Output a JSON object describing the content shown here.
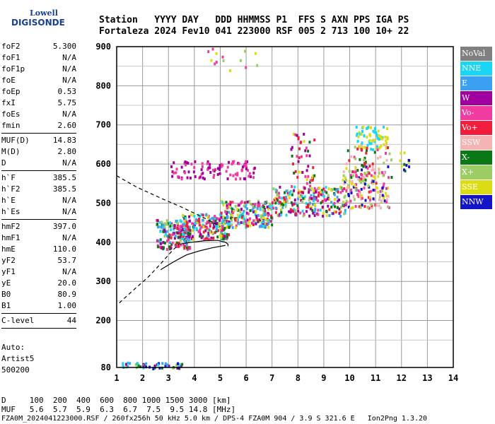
{
  "logo": {
    "line1": "Lowell",
    "line2": "DIGISONDE"
  },
  "header": {
    "row1": "Station   YYYY DAY   DDD HHMMSS P1  FFS S AXN PPS IGA PS",
    "row2": "Fortaleza 2024 Fev10 041 223000 RSF 005 2 713 100 10+ 22"
  },
  "params": [
    {
      "name": "foF2",
      "value": "5.300"
    },
    {
      "name": "foF1",
      "value": "N/A"
    },
    {
      "name": "foF1p",
      "value": "N/A"
    },
    {
      "name": "foE",
      "value": "N/A"
    },
    {
      "name": "foEp",
      "value": "0.53"
    },
    {
      "name": "fxI",
      "value": "5.75"
    },
    {
      "name": "foEs",
      "value": "N/A"
    },
    {
      "name": "fmin",
      "value": "2.60"
    },
    {
      "sep": true
    },
    {
      "name": "MUF(D)",
      "value": "14.83"
    },
    {
      "name": "M(D)",
      "value": "2.80"
    },
    {
      "name": "D",
      "value": "N/A"
    },
    {
      "sep": true
    },
    {
      "name": "h`F",
      "value": "385.5"
    },
    {
      "name": "h`F2",
      "value": "385.5"
    },
    {
      "name": "h`E",
      "value": "N/A"
    },
    {
      "name": "h`Es",
      "value": "N/A"
    },
    {
      "sep": true
    },
    {
      "name": "hmF2",
      "value": "397.0"
    },
    {
      "name": "hmF1",
      "value": "N/A"
    },
    {
      "name": "hmE",
      "value": "110.0"
    },
    {
      "name": "yF2",
      "value": "53.7"
    },
    {
      "name": "yF1",
      "value": "N/A"
    },
    {
      "name": "yE",
      "value": "20.0"
    },
    {
      "name": "B0",
      "value": "80.9"
    },
    {
      "name": "B1",
      "value": "1.00"
    },
    {
      "sep": true
    },
    {
      "name": "C-level",
      "value": "44"
    },
    {
      "sep": true
    }
  ],
  "auto": {
    "line1": "Auto:",
    "line2": "Artist5",
    "line3": "500200"
  },
  "bottom": {
    "d_row": "D     100  200  400  600  800 1000 1500 3000 [km]",
    "muf_row": "MUF   5.6  5.7  5.9  6.3  6.7  7.5  9.5 14.8 [MHz]",
    "footer": "FZA0M_2024041223000.RSF / 260fx256h 50 kHz 5.0 km / DPS-4 FZA0M 904 / 3.9 S 321.6 E   Ion2Png 1.3.20"
  },
  "legend": [
    {
      "label": "NoVal",
      "color": "#808080"
    },
    {
      "label": "NNE",
      "color": "#19d6f5"
    },
    {
      "label": "E",
      "color": "#3ca0f0"
    },
    {
      "label": "W",
      "color": "#a0009f"
    },
    {
      "label": "Vo-",
      "color": "#f03ca0"
    },
    {
      "label": "Vo+",
      "color": "#f01e3c"
    },
    {
      "label": "SSW",
      "color": "#f5b4b4"
    },
    {
      "label": "X-",
      "color": "#0a7814"
    },
    {
      "label": "X+",
      "color": "#9ccc64"
    },
    {
      "label": "SSE",
      "color": "#dcdc14"
    },
    {
      "label": "NNW",
      "color": "#1414c8"
    }
  ],
  "chart_data": {
    "type": "scatter",
    "xlim": [
      1,
      14
    ],
    "ylim": [
      80,
      900
    ],
    "x_ticks": [
      "1",
      "2",
      "3",
      "4",
      "5",
      "6",
      "7",
      "8",
      "9",
      "10",
      "11",
      "12",
      "13",
      "14"
    ],
    "y_ticks": [
      "80",
      "200",
      "300",
      "400",
      "500",
      "600",
      "700",
      "800",
      "900"
    ],
    "grid": true,
    "traces": [
      {
        "x": [
          1.0,
          1.8,
          2.8,
          3.5,
          4.2,
          4.6,
          5.0
        ],
        "y": [
          570,
          540,
          510,
          490,
          468,
          455,
          440
        ]
      },
      {
        "x": [
          1.1,
          1.6,
          2.2,
          2.7,
          3.1,
          3.4
        ],
        "y": [
          245,
          275,
          310,
          345,
          375,
          395
        ]
      },
      {
        "x": [
          3.4,
          3.9,
          4.4,
          4.9,
          5.2,
          5.3,
          5.3
        ],
        "y": [
          395,
          400,
          404,
          405,
          400,
          395,
          390
        ]
      },
      {
        "x": [
          2.7,
          3.2,
          3.7,
          4.2,
          4.7,
          5.2
        ],
        "y": [
          330,
          350,
          368,
          378,
          386,
          392
        ]
      }
    ],
    "clusters": [
      {
        "x": [
          1.2,
          3.6
        ],
        "y": [
          80,
          95
        ],
        "n": 50,
        "colors": [
          "#3ca0f0",
          "#19d6f5",
          "#0a7814",
          "#9ccc64",
          "#a0009f",
          "#1414c8"
        ]
      },
      {
        "x": [
          2.5,
          3.8
        ],
        "y": [
          385,
          460
        ],
        "n": 180,
        "colors": [
          "#f03ca0",
          "#f01e3c",
          "#3ca0f0",
          "#a0009f",
          "#0a7814",
          "#19d6f5",
          "#9ccc64"
        ]
      },
      {
        "x": [
          3.5,
          5.3
        ],
        "y": [
          410,
          475
        ],
        "n": 220,
        "colors": [
          "#f03ca0",
          "#3ca0f0",
          "#a0009f",
          "#f01e3c",
          "#19d6f5",
          "#0a7814",
          "#dcdc14"
        ]
      },
      {
        "x": [
          5.0,
          7.0
        ],
        "y": [
          440,
          510
        ],
        "n": 220,
        "colors": [
          "#3ca0f0",
          "#19d6f5",
          "#f03ca0",
          "#f01e3c",
          "#0a7814",
          "#a0009f",
          "#dcdc14",
          "#9ccc64"
        ]
      },
      {
        "x": [
          7.0,
          9.8
        ],
        "y": [
          470,
          545
        ],
        "n": 240,
        "colors": [
          "#3ca0f0",
          "#19d6f5",
          "#dcdc14",
          "#9ccc64",
          "#f03ca0",
          "#f01e3c",
          "#a0009f",
          "#0a7814"
        ]
      },
      {
        "x": [
          9.7,
          11.5
        ],
        "y": [
          490,
          600
        ],
        "n": 170,
        "colors": [
          "#dcdc14",
          "#9ccc64",
          "#1414c8",
          "#f01e3c",
          "#f03ca0",
          "#f5b4b4"
        ]
      },
      {
        "x": [
          3.0,
          6.3
        ],
        "y": [
          565,
          610
        ],
        "n": 100,
        "colors": [
          "#a0009f",
          "#f03ca0"
        ]
      },
      {
        "x": [
          10.2,
          11.5
        ],
        "y": [
          640,
          700
        ],
        "n": 70,
        "colors": [
          "#19d6f5",
          "#dcdc14"
        ]
      },
      {
        "x": [
          9.8,
          11.7
        ],
        "y": [
          560,
          650
        ],
        "n": 50,
        "colors": [
          "#f01e3c",
          "#0a7814",
          "#9ccc64",
          "#f5b4b4",
          "#f03ca0"
        ]
      },
      {
        "x": [
          7.7,
          8.6
        ],
        "y": [
          530,
          680
        ],
        "n": 55,
        "colors": [
          "#0a7814",
          "#f01e3c",
          "#f03ca0",
          "#a0009f",
          "#dcdc14"
        ]
      },
      {
        "x": [
          11.9,
          12.6
        ],
        "y": [
          585,
          635
        ],
        "n": 12,
        "colors": [
          "#1414c8",
          "#dcdc14",
          "#0a7814"
        ]
      },
      {
        "x": [
          4.5,
          6.5
        ],
        "y": [
          840,
          900
        ],
        "n": 14,
        "colors": [
          "#dcdc14",
          "#f03ca0",
          "#9ccc64"
        ]
      }
    ]
  }
}
